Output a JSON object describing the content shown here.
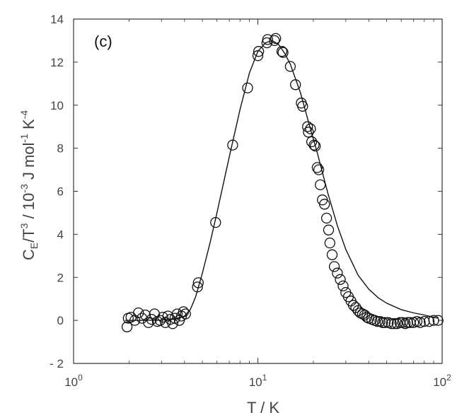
{
  "chart_data": {
    "type": "scatter",
    "panel_label": "(c)",
    "title": "",
    "xlabel": "T / K",
    "ylabel_parts": {
      "c": "C",
      "c_sub": "E",
      "t": "/T",
      "t_sup": "3",
      "mid": " / 10",
      "mid_sup": "-3",
      "unit": " J mol",
      "unit_sup": "-1",
      "k": " K",
      "k_sup": "-4"
    },
    "x_scale": "log",
    "xlim": [
      1,
      100
    ],
    "ylim": [
      -2,
      14
    ],
    "x_ticks": [
      1,
      10,
      100
    ],
    "x_tick_labels": [
      {
        "base": "10",
        "exp": "0"
      },
      {
        "base": "10",
        "exp": "1"
      },
      {
        "base": "10",
        "exp": "2"
      }
    ],
    "y_ticks": [
      -2,
      0,
      2,
      4,
      6,
      8,
      10,
      12,
      14
    ],
    "y_tick_labels": [
      "- 2",
      "0",
      "2",
      "4",
      "6",
      "8",
      "10",
      "12",
      "14"
    ],
    "grid": false,
    "series": [
      {
        "kind": "points",
        "marker": "open-circle",
        "color": "#111111",
        "x": [
          1.95,
          1.98,
          2.05,
          2.15,
          2.25,
          2.35,
          2.45,
          2.55,
          2.65,
          2.75,
          2.85,
          2.95,
          3.05,
          3.15,
          3.25,
          3.35,
          3.45,
          3.55,
          3.65,
          3.75,
          3.85,
          3.95,
          4.05,
          4.7,
          4.75,
          5.9,
          7.3,
          8.8,
          10.0,
          10.1,
          11.2,
          11.3,
          12.3,
          12.5,
          13.5,
          13.7,
          15.0,
          16.0,
          17.2,
          17.5,
          18.6,
          18.8,
          19.3,
          19.6,
          20.2,
          20.5,
          21.0,
          21.4,
          21.8,
          22.4,
          23.0,
          23.6,
          24.2,
          24.6,
          25.3,
          26.0,
          27.0,
          28.0,
          29.0,
          30.0,
          31.0,
          32.0,
          33.0,
          34.0,
          35.0,
          36.0,
          37.0,
          38.0,
          39.0,
          40.0,
          41.5,
          43.0,
          44.5,
          46.0,
          47.5,
          49.0,
          51.0,
          53.0,
          55.0,
          57.0,
          59.0,
          61.0,
          63.0,
          65.0,
          67.0,
          70.0,
          73.0,
          76.0,
          80.0,
          85.0,
          90.0,
          95.0
        ],
        "y": [
          -0.3,
          0.1,
          0.15,
          0.0,
          0.35,
          0.1,
          0.25,
          -0.1,
          0.05,
          0.3,
          -0.05,
          0.0,
          0.15,
          -0.1,
          0.2,
          0.05,
          -0.15,
          0.1,
          0.3,
          0.0,
          0.2,
          0.4,
          0.3,
          1.55,
          1.75,
          4.55,
          8.15,
          10.8,
          12.3,
          12.5,
          12.9,
          13.05,
          13.0,
          13.1,
          12.5,
          12.45,
          11.8,
          10.95,
          10.1,
          9.95,
          9.0,
          8.75,
          8.9,
          8.3,
          8.15,
          8.1,
          7.1,
          7.0,
          6.3,
          5.6,
          5.4,
          4.75,
          4.2,
          3.6,
          3.05,
          2.5,
          2.2,
          1.9,
          1.6,
          1.3,
          1.1,
          0.9,
          0.7,
          0.6,
          0.45,
          0.35,
          0.3,
          0.25,
          0.15,
          0.1,
          0.05,
          0.0,
          -0.05,
          -0.05,
          -0.1,
          -0.1,
          -0.1,
          -0.15,
          -0.15,
          -0.15,
          -0.1,
          -0.1,
          -0.15,
          -0.1,
          -0.1,
          -0.1,
          -0.05,
          -0.1,
          -0.05,
          -0.05,
          0.0,
          0.0
        ]
      },
      {
        "kind": "line",
        "color": "#111111",
        "x": [
          1.9,
          2.5,
          3.0,
          3.5,
          4.0,
          4.3,
          4.6,
          5.0,
          5.5,
          6.0,
          7.0,
          8.0,
          9.0,
          10.0,
          11.0,
          12.0,
          13.0,
          14.0,
          15.0,
          17.0,
          19.0,
          21.0,
          24.0,
          27.0,
          30.0,
          35.0,
          40.0,
          45.0,
          50.0,
          60.0,
          70.0,
          80.0,
          95.0
        ],
        "y": [
          0.0,
          0.0,
          0.02,
          0.05,
          0.2,
          0.5,
          1.1,
          2.2,
          3.6,
          5.0,
          7.6,
          9.8,
          11.5,
          12.5,
          12.9,
          13.0,
          12.8,
          12.4,
          11.9,
          10.6,
          9.1,
          7.8,
          5.9,
          4.4,
          3.3,
          2.1,
          1.45,
          1.05,
          0.8,
          0.5,
          0.35,
          0.25,
          0.1
        ]
      }
    ]
  }
}
